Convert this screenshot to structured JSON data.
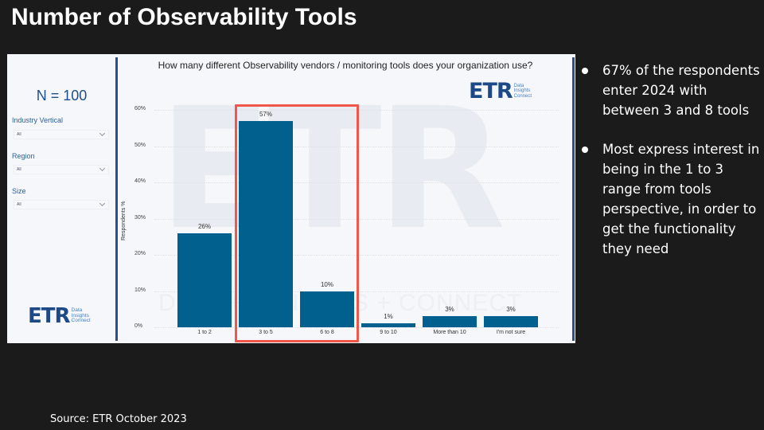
{
  "slide": {
    "title": "Number of Observability Tools",
    "source": "Source: ETR October 2023",
    "bullets": [
      "67% of the respondents enter 2024 with between 3 and 8 tools",
      "Most express interest in being in the 1 to 3 range from tools perspective, in order to get the functionality they need"
    ]
  },
  "dashboard": {
    "sample_size": "N = 100",
    "filters": [
      {
        "label": "Industry Vertical",
        "value": "All"
      },
      {
        "label": "Region",
        "value": "All"
      },
      {
        "label": "Size",
        "value": "All"
      }
    ],
    "logo": {
      "mark": "ETR",
      "tagline": [
        "Data",
        "Insights",
        "Connect"
      ]
    },
    "watermark": {
      "big": "ETR",
      "small": "DATA + INSIGHTS + CONNECT"
    },
    "colors": {
      "bar": "#02608f",
      "highlight": "#f0564a",
      "divider": "#2b4f86",
      "panel_bg": "#f5f7fa"
    }
  },
  "chart_data": {
    "type": "bar",
    "title": "How many different Observability vendors / monitoring tools does your organization use?",
    "xlabel": "",
    "ylabel": "Respondents %",
    "categories": [
      "1 to 2",
      "3 to 5",
      "6 to 8",
      "9 to 10",
      "More than 10",
      "I'm not sure"
    ],
    "values": [
      26,
      57,
      10,
      1,
      3,
      3
    ],
    "value_labels": [
      "26%",
      "57%",
      "10%",
      "1%",
      "3%",
      "3%"
    ],
    "y_ticks": [
      "0%",
      "10%",
      "20%",
      "30%",
      "40%",
      "50%",
      "60%"
    ],
    "ylim": [
      0,
      60
    ],
    "grid": true,
    "legend": "none",
    "highlighted_categories": [
      "3 to 5",
      "6 to 8"
    ]
  }
}
